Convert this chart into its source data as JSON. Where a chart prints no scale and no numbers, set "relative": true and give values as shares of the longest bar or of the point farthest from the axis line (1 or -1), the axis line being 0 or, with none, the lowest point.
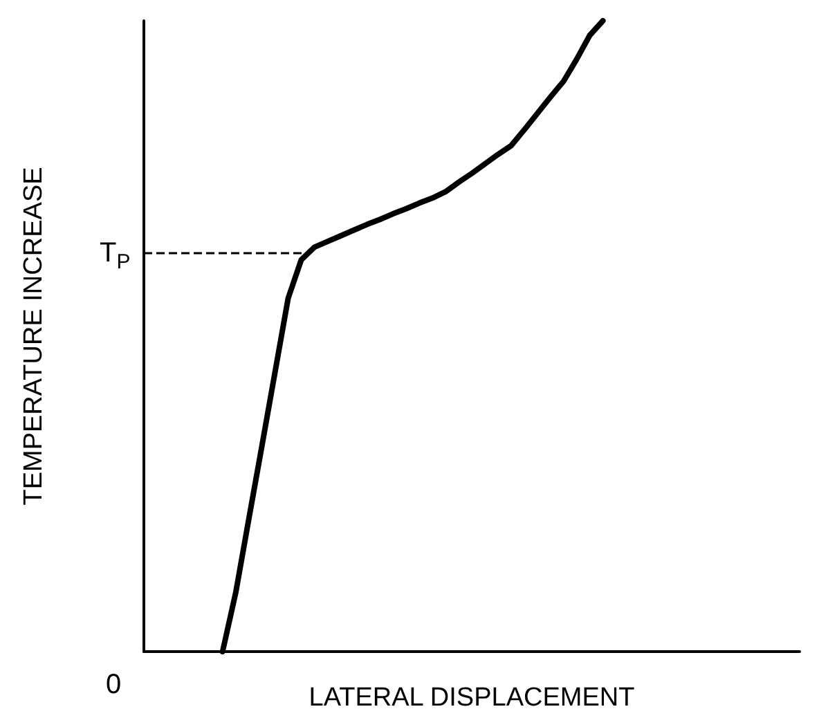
{
  "chart_data": {
    "type": "line",
    "relative": true,
    "xlabel": "LATERAL DISPLACEMENT",
    "ylabel": "TEMPERATURE INCREASE",
    "categories": [
      null,
      null,
      null,
      null,
      null,
      null,
      null,
      null,
      null,
      null,
      null,
      null,
      null,
      null,
      null,
      null,
      null,
      null,
      null,
      null,
      null,
      null,
      null,
      null,
      null,
      null,
      null,
      null,
      null,
      null,
      null,
      null,
      null,
      null,
      null,
      null,
      null,
      null,
      null,
      null,
      null,
      null,
      null,
      null,
      null,
      null,
      null,
      null,
      null,
      null,
      null
    ],
    "series": [
      {
        "color": "#000000",
        "values": [
          null,
          null,
          null,
          null,
          null,
          null,
          0,
          0.093,
          0.21,
          0.326,
          0.443,
          0.56,
          0.621,
          0.641,
          0.65,
          0.659,
          0.668,
          0.677,
          0.685,
          0.694,
          0.702,
          0.711,
          0.719,
          0.729,
          0.744,
          0.758,
          0.773,
          0.788,
          0.802,
          0.827,
          0.853,
          0.879,
          0.904,
          0.939,
          0.977,
          1,
          null,
          null,
          null,
          null,
          null,
          null,
          null,
          null,
          null,
          null,
          null,
          null,
          null,
          null,
          null
        ]
      }
    ],
    "annotations": [
      "0"
    ],
    "ref_lines": [
      {
        "axis": "y",
        "value": 0.632,
        "label": "T$_{P}$",
        "line_style": "dashed",
        "color": "#000000"
      }
    ],
    "marker": "none",
    "line_style": "solid",
    "grid": false
  }
}
